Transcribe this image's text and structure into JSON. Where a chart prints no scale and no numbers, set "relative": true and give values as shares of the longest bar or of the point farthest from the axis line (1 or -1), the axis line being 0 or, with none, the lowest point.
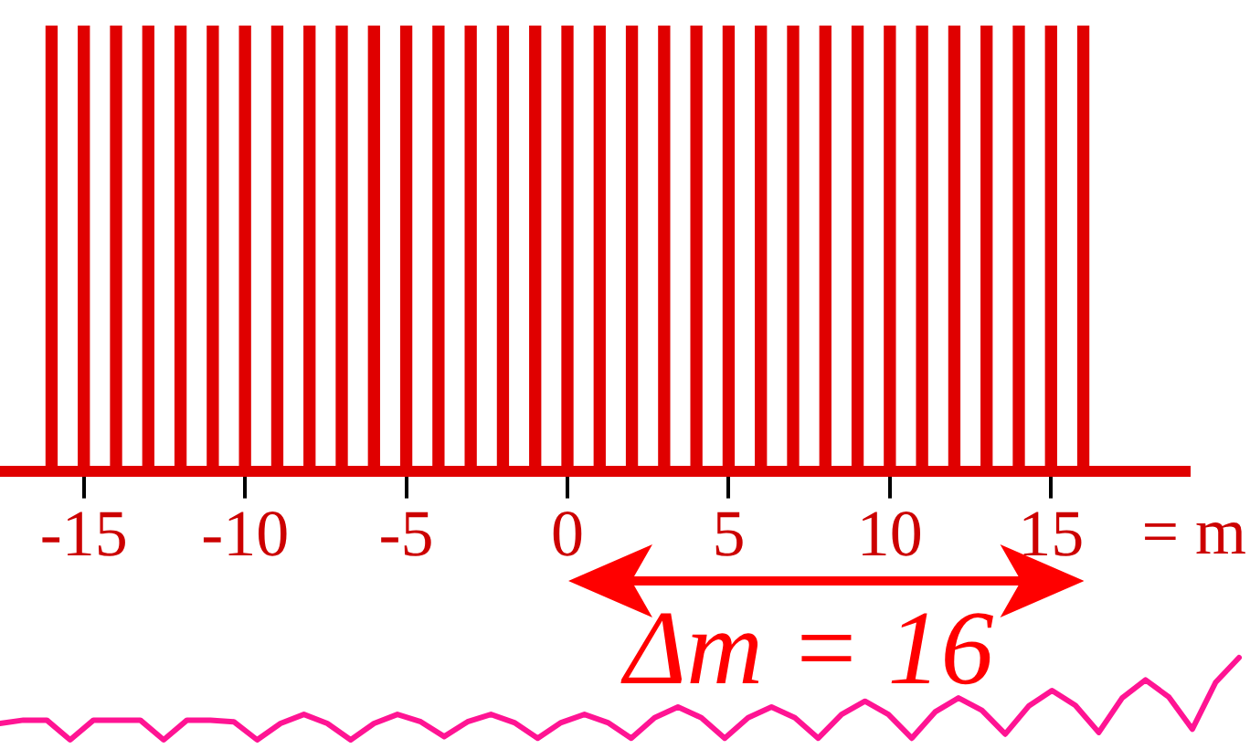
{
  "chart_data": [
    {
      "type": "bar",
      "x": [
        -16,
        -15,
        -14,
        -13,
        -12,
        -11,
        -10,
        -9,
        -8,
        -7,
        -6,
        -5,
        -4,
        -3,
        -2,
        -1,
        0,
        1,
        2,
        3,
        4,
        5,
        6,
        7,
        8,
        9,
        10,
        11,
        12,
        13,
        14,
        15,
        16
      ],
      "values": [
        1,
        1,
        1,
        1,
        1,
        1,
        1,
        1,
        1,
        1,
        1,
        1,
        1,
        1,
        1,
        1,
        1,
        1,
        1,
        1,
        1,
        1,
        1,
        1,
        1,
        1,
        1,
        1,
        1,
        1,
        1,
        1,
        1
      ],
      "color": "#e00000",
      "relative": true,
      "xlabel": "= m",
      "xlim": [
        -17.6,
        19.3
      ],
      "xticks": [
        -15,
        -10,
        -5,
        0,
        5,
        10,
        15
      ],
      "annotations": [
        "Δm = 16"
      ]
    },
    {
      "type": "line",
      "categories": [
        null,
        null,
        null,
        null,
        null,
        null,
        null,
        null,
        null,
        null,
        null,
        null,
        null,
        null,
        null,
        null,
        null,
        null,
        null,
        null,
        null,
        null,
        null,
        null,
        null,
        null,
        null,
        null,
        null,
        null,
        null,
        null,
        null,
        null,
        null,
        null,
        null,
        null,
        null,
        null,
        null,
        null,
        null,
        null,
        null,
        null,
        null,
        null,
        null,
        null,
        null,
        null,
        null,
        null
      ],
      "values": [
        0.2,
        0.24,
        0.24,
        0,
        0.24,
        0.24,
        0.24,
        0,
        0.24,
        0.24,
        0.22,
        0,
        0.2,
        0.31,
        0.2,
        0,
        0.2,
        0.31,
        0.22,
        0.04,
        0.22,
        0.31,
        0.21,
        0.02,
        0.21,
        0.31,
        0.21,
        0.02,
        0.27,
        0.4,
        0.27,
        0.02,
        0.27,
        0.4,
        0.27,
        0.02,
        0.31,
        0.47,
        0.31,
        0.02,
        0.34,
        0.51,
        0.36,
        0.07,
        0.41,
        0.6,
        0.42,
        0.09,
        0.51,
        0.73,
        0.52,
        0.13,
        0.7,
        1
      ],
      "color": "#ff1493",
      "relative": true
    }
  ]
}
